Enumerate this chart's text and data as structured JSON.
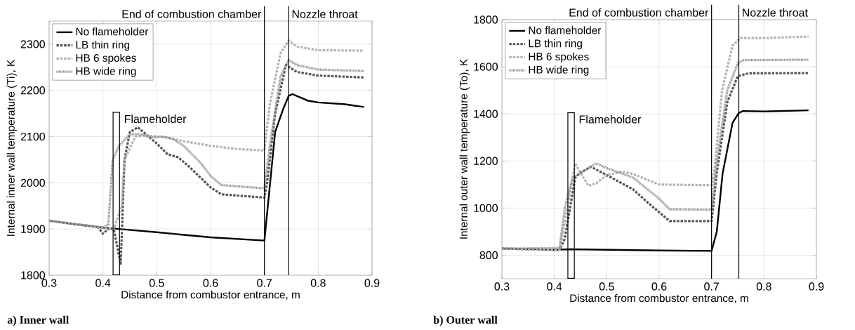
{
  "chart_data": [
    {
      "type": "line",
      "title": "a) Inner wall",
      "xlabel": "Distance from combustor entrance, m",
      "ylabel": "Internal inner wall temperature (Ti), K",
      "xlim": [
        0.3,
        0.9
      ],
      "ylim": [
        1800,
        2350
      ],
      "xticks": [
        0.3,
        0.4,
        0.5,
        0.6,
        0.7,
        0.8,
        0.9
      ],
      "yticks": [
        1800,
        1900,
        2000,
        2100,
        2200,
        2300
      ],
      "grid": true,
      "legend": "top left",
      "series": [
        {
          "name": "No flameholder",
          "color": "#000000",
          "line_style": "solid",
          "x": [
            0.3,
            0.35,
            0.4,
            0.42,
            0.43,
            0.5,
            0.6,
            0.7,
            0.72,
            0.734,
            0.745,
            0.752,
            0.76,
            0.78,
            0.8,
            0.85,
            0.885
          ],
          "values": [
            1918,
            1910,
            1903,
            1901,
            1900,
            1893,
            1882,
            1875,
            2110,
            2157,
            2188,
            2192,
            2188,
            2178,
            2174,
            2170,
            2164
          ]
        },
        {
          "name": "LB thin ring",
          "color": "#555555",
          "line_style": "dashed",
          "x": [
            0.3,
            0.35,
            0.39,
            0.4,
            0.41,
            0.42,
            0.433,
            0.44,
            0.45,
            0.465,
            0.48,
            0.5,
            0.52,
            0.54,
            0.56,
            0.6,
            0.62,
            0.7,
            0.705,
            0.72,
            0.74,
            0.76,
            0.8,
            0.885
          ],
          "values": [
            1918,
            1910,
            1905,
            1890,
            1900,
            1900,
            1825,
            2050,
            2110,
            2120,
            2105,
            2085,
            2062,
            2055,
            2035,
            1990,
            1975,
            1968,
            2000,
            2150,
            2255,
            2240,
            2232,
            2228
          ]
        },
        {
          "name": "HB 6 spokes",
          "color": "#b4b4b4",
          "line_style": "dashed",
          "x": [
            0.3,
            0.4,
            0.42,
            0.435,
            0.44,
            0.46,
            0.48,
            0.5,
            0.52,
            0.55,
            0.6,
            0.65,
            0.7,
            0.71,
            0.73,
            0.745,
            0.76,
            0.8,
            0.885
          ],
          "values": [
            1918,
            1903,
            1900,
            1950,
            2050,
            2100,
            2103,
            2100,
            2098,
            2090,
            2080,
            2073,
            2070,
            2170,
            2280,
            2308,
            2295,
            2287,
            2286
          ]
        },
        {
          "name": "HB wide ring",
          "color": "#8c8c8c",
          "line_style": "dotted",
          "x": [
            0.3,
            0.4,
            0.41,
            0.418,
            0.43,
            0.45,
            0.47,
            0.49,
            0.51,
            0.53,
            0.55,
            0.58,
            0.6,
            0.62,
            0.7,
            0.71,
            0.73,
            0.745,
            0.76,
            0.8,
            0.885
          ],
          "values": [
            1918,
            1903,
            1910,
            2050,
            2080,
            2105,
            2105,
            2098,
            2100,
            2095,
            2080,
            2045,
            2015,
            1995,
            1988,
            2080,
            2230,
            2266,
            2255,
            2245,
            2242
          ]
        }
      ],
      "ref_lines": [
        {
          "axis": "x",
          "value": 0.7,
          "label": "End of combustion chamber"
        },
        {
          "axis": "x",
          "value": 0.745,
          "label": "Nozzle throat"
        }
      ],
      "annotations": [
        "Flameholder"
      ]
    },
    {
      "type": "line",
      "title": "b) Outer wall",
      "xlabel": "Distance from combustor entrance, m",
      "ylabel": "Internal outer wall temperature (To), K",
      "xlim": [
        0.3,
        0.9
      ],
      "ylim": [
        700,
        1800
      ],
      "xticks": [
        0.3,
        0.4,
        0.5,
        0.6,
        0.7,
        0.8,
        0.9
      ],
      "yticks": [
        800,
        1000,
        1200,
        1400,
        1600,
        1800
      ],
      "grid": true,
      "legend": "top left",
      "series": [
        {
          "name": "No flameholder",
          "color": "#000000",
          "line_style": "solid",
          "x": [
            0.3,
            0.4,
            0.43,
            0.6,
            0.7,
            0.71,
            0.721,
            0.74,
            0.752,
            0.76,
            0.8,
            0.885
          ],
          "values": [
            828,
            823,
            825,
            820,
            818,
            900,
            1146,
            1362,
            1404,
            1412,
            1410,
            1415
          ]
        },
        {
          "name": "LB thin ring",
          "color": "#555555",
          "line_style": "dashed",
          "x": [
            0.3,
            0.41,
            0.42,
            0.43,
            0.44,
            0.45,
            0.47,
            0.5,
            0.55,
            0.58,
            0.62,
            0.7,
            0.71,
            0.73,
            0.75,
            0.77,
            0.885
          ],
          "values": [
            828,
            822,
            870,
            1000,
            1130,
            1150,
            1175,
            1140,
            1080,
            1020,
            945,
            945,
            1150,
            1450,
            1560,
            1572,
            1573
          ]
        },
        {
          "name": "HB 6 spokes",
          "color": "#b4b4b4",
          "line_style": "dashed",
          "x": [
            0.3,
            0.41,
            0.425,
            0.44,
            0.45,
            0.465,
            0.48,
            0.5,
            0.53,
            0.55,
            0.6,
            0.7,
            0.705,
            0.72,
            0.74,
            0.755,
            0.8,
            0.885
          ],
          "values": [
            828,
            822,
            1000,
            1190,
            1150,
            1095,
            1105,
            1140,
            1155,
            1145,
            1100,
            1097,
            1150,
            1500,
            1690,
            1722,
            1722,
            1728
          ]
        },
        {
          "name": "HB wide ring",
          "color": "#8c8c8c",
          "line_style": "dotted",
          "x": [
            0.3,
            0.41,
            0.42,
            0.435,
            0.45,
            0.48,
            0.5,
            0.55,
            0.6,
            0.62,
            0.7,
            0.71,
            0.73,
            0.75,
            0.76,
            0.885
          ],
          "values": [
            828,
            830,
            1000,
            1130,
            1150,
            1190,
            1170,
            1130,
            1040,
            995,
            993,
            1200,
            1500,
            1615,
            1628,
            1630
          ]
        }
      ],
      "ref_lines": [
        {
          "axis": "x",
          "value": 0.7,
          "label": "End of combustion chamber"
        },
        {
          "axis": "x",
          "value": 0.752,
          "label": "Nozzle throat"
        }
      ],
      "annotations": [
        "Flameholder"
      ]
    }
  ]
}
